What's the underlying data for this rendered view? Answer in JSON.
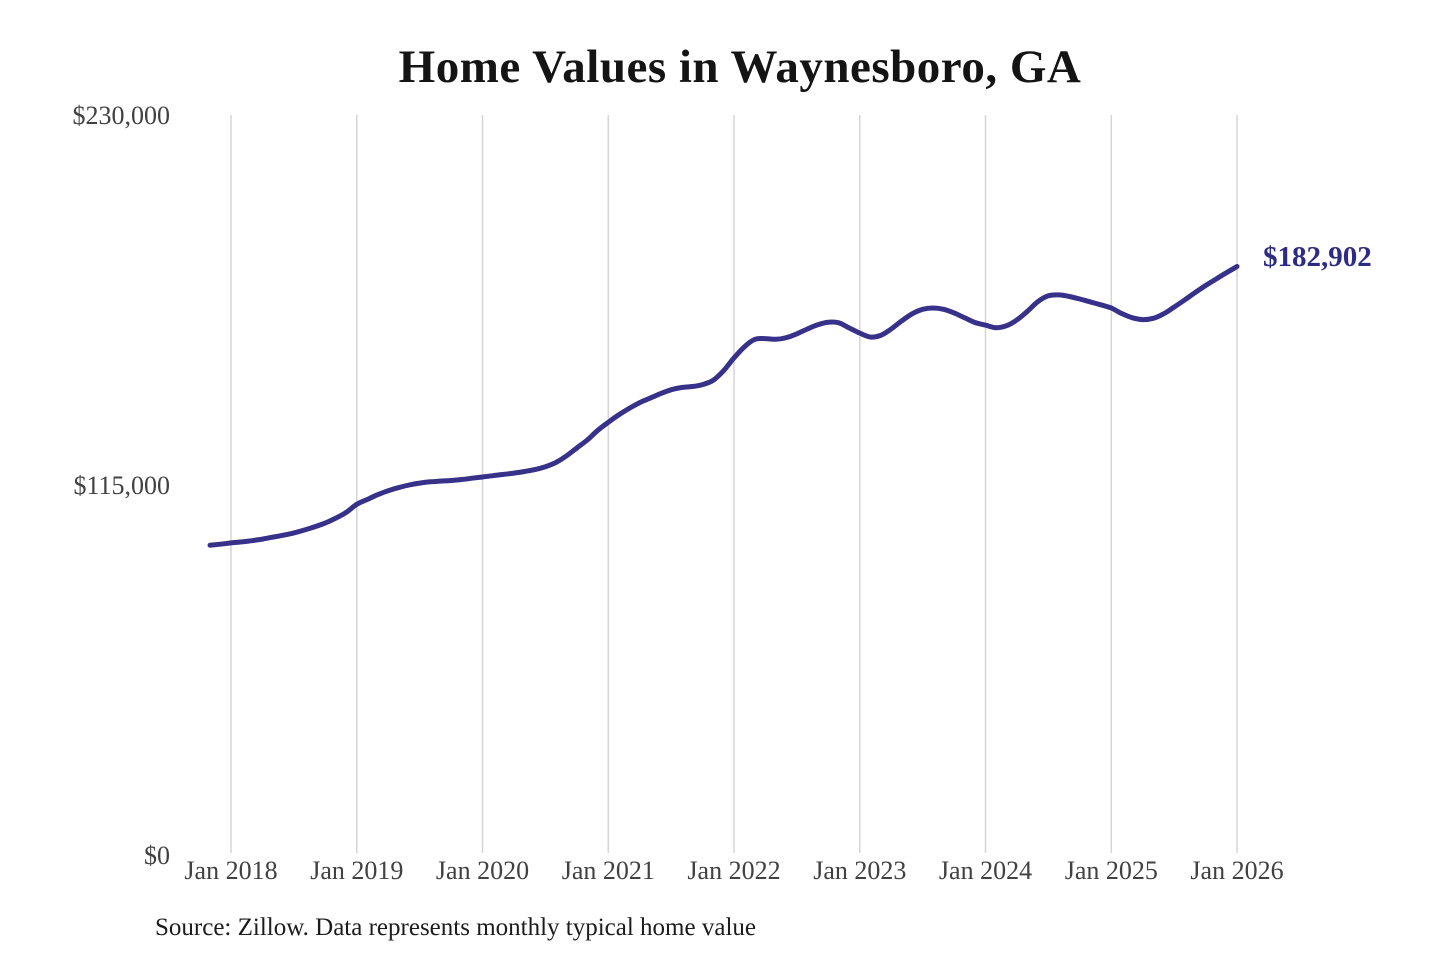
{
  "page": {
    "title": "Home Values in Waynesboro, GA",
    "source_note": "Source: Zillow. Data represents monthly typical home value"
  },
  "colors": {
    "line": "#37318a",
    "end_label_text": "#2e2b85",
    "gridline": "#d5d5d5",
    "axis_text": "#414141",
    "title_text": "#141414",
    "background": "#ffffff"
  },
  "chart_data": {
    "type": "line",
    "title": "Home Values in Waynesboro, GA",
    "series_name": "Monthly typical home value (Zillow)",
    "final_value_label": "$182,902",
    "final_value": 182902,
    "ylim": [
      0,
      230000
    ],
    "grid": "vertical-only",
    "legend": "none",
    "y_ticks": [
      {
        "value": 230000,
        "label": "$230,000"
      },
      {
        "value": 115000,
        "label": "$115,000"
      },
      {
        "value": 0,
        "label": "$0"
      }
    ],
    "x_ticks": [
      {
        "month": "2018-01",
        "label": "Jan 2018"
      },
      {
        "month": "2019-01",
        "label": "Jan 2019"
      },
      {
        "month": "2020-01",
        "label": "Jan 2020"
      },
      {
        "month": "2021-01",
        "label": "Jan 2021"
      },
      {
        "month": "2022-01",
        "label": "Jan 2022"
      },
      {
        "month": "2023-01",
        "label": "Jan 2023"
      },
      {
        "month": "2024-01",
        "label": "Jan 2024"
      },
      {
        "month": "2025-01",
        "label": "Jan 2025"
      },
      {
        "month": "2026-01",
        "label": "Jan 2026"
      }
    ],
    "x": [
      "2017-11",
      "2017-12",
      "2018-01",
      "2018-02",
      "2018-03",
      "2018-04",
      "2018-05",
      "2018-06",
      "2018-07",
      "2018-08",
      "2018-09",
      "2018-10",
      "2018-11",
      "2018-12",
      "2019-01",
      "2019-02",
      "2019-03",
      "2019-04",
      "2019-05",
      "2019-06",
      "2019-07",
      "2019-08",
      "2019-09",
      "2019-10",
      "2019-11",
      "2019-12",
      "2020-01",
      "2020-02",
      "2020-03",
      "2020-04",
      "2020-05",
      "2020-06",
      "2020-07",
      "2020-08",
      "2020-09",
      "2020-10",
      "2020-11",
      "2020-12",
      "2021-01",
      "2021-02",
      "2021-03",
      "2021-04",
      "2021-05",
      "2021-06",
      "2021-07",
      "2021-08",
      "2021-09",
      "2021-10",
      "2021-11",
      "2021-12",
      "2022-01",
      "2022-02",
      "2022-03",
      "2022-04",
      "2022-05",
      "2022-06",
      "2022-07",
      "2022-08",
      "2022-09",
      "2022-10",
      "2022-11",
      "2022-12",
      "2023-01",
      "2023-02",
      "2023-03",
      "2023-04",
      "2023-05",
      "2023-06",
      "2023-07",
      "2023-08",
      "2023-09",
      "2023-10",
      "2023-11",
      "2023-12",
      "2024-01",
      "2024-02",
      "2024-03",
      "2024-04",
      "2024-05",
      "2024-06",
      "2024-07",
      "2024-08",
      "2024-09",
      "2024-10",
      "2024-11",
      "2024-12",
      "2025-01",
      "2025-02",
      "2025-03",
      "2025-04",
      "2025-05",
      "2025-06",
      "2025-07",
      "2025-08",
      "2025-09",
      "2025-10",
      "2025-11",
      "2025-12",
      "2026-01"
    ],
    "values": [
      96300,
      96600,
      97000,
      97300,
      97700,
      98200,
      98800,
      99400,
      100100,
      101000,
      102000,
      103200,
      104700,
      106500,
      109000,
      110500,
      112000,
      113200,
      114200,
      115000,
      115600,
      116000,
      116200,
      116400,
      116700,
      117100,
      117500,
      117900,
      118300,
      118700,
      119200,
      119800,
      120700,
      122000,
      124000,
      126500,
      129000,
      132000,
      134500,
      136800,
      138800,
      140600,
      142000,
      143400,
      144600,
      145300,
      145600,
      146200,
      147500,
      150500,
      154500,
      158000,
      160300,
      160500,
      160300,
      160800,
      162000,
      163500,
      164800,
      165600,
      165400,
      163800,
      162200,
      161000,
      161500,
      163500,
      166000,
      168200,
      169600,
      170000,
      169600,
      168500,
      167000,
      165500,
      164700,
      163900,
      164500,
      166300,
      169000,
      172000,
      173800,
      174100,
      173600,
      172800,
      171900,
      171000,
      170000,
      168300,
      167000,
      166400,
      166800,
      168200,
      170300,
      172500,
      174800,
      177000,
      179000,
      181000,
      182902
    ]
  }
}
